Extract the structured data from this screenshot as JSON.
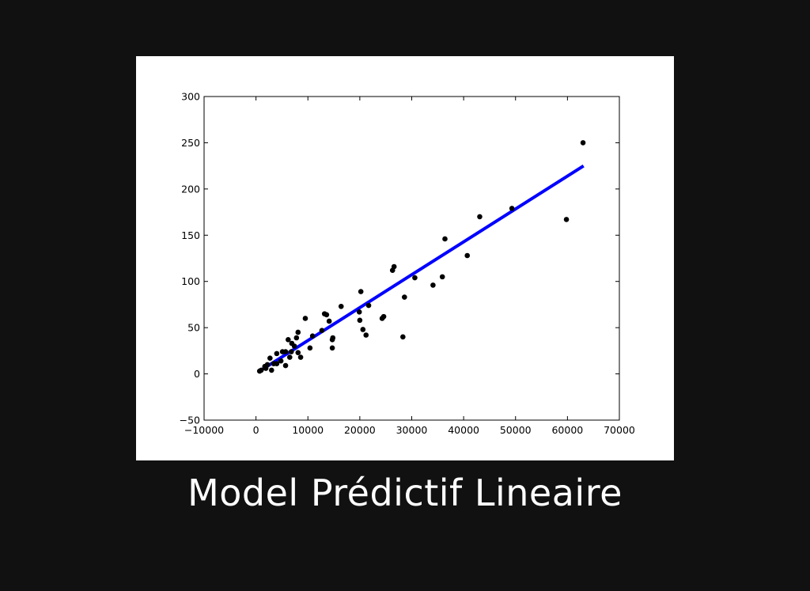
{
  "slide": {
    "title": "Model Prédictif Lineaire"
  },
  "colors": {
    "background": "#111111",
    "panel": "#ffffff",
    "points": "#000000",
    "fit_line": "#0000ff"
  },
  "chart_data": {
    "type": "scatter",
    "title": "",
    "xlabel": "",
    "ylabel": "",
    "xlim": [
      -10000,
      70000
    ],
    "ylim": [
      -50,
      300
    ],
    "xticks": [
      -10000,
      0,
      10000,
      20000,
      30000,
      40000,
      50000,
      60000,
      70000
    ],
    "yticks": [
      -50,
      0,
      50,
      100,
      150,
      200,
      250,
      300
    ],
    "grid": false,
    "points": [
      [
        63000,
        250
      ],
      [
        59800,
        167
      ],
      [
        49300,
        179
      ],
      [
        43100,
        170
      ],
      [
        36400,
        146
      ],
      [
        40700,
        128
      ],
      [
        35900,
        105
      ],
      [
        34100,
        96
      ],
      [
        30600,
        104
      ],
      [
        26600,
        116
      ],
      [
        26300,
        112
      ],
      [
        28600,
        83
      ],
      [
        28300,
        40
      ],
      [
        24600,
        62
      ],
      [
        24300,
        60
      ],
      [
        21700,
        74
      ],
      [
        20200,
        89
      ],
      [
        19900,
        67
      ],
      [
        20000,
        58
      ],
      [
        20600,
        48
      ],
      [
        21200,
        42
      ],
      [
        16400,
        73
      ],
      [
        9500,
        60
      ],
      [
        13200,
        65
      ],
      [
        13600,
        64
      ],
      [
        14100,
        57
      ],
      [
        12700,
        47
      ],
      [
        10900,
        41
      ],
      [
        14700,
        37
      ],
      [
        14800,
        39
      ],
      [
        10400,
        28
      ],
      [
        14700,
        28
      ],
      [
        8100,
        45
      ],
      [
        7800,
        39
      ],
      [
        7400,
        30
      ],
      [
        6900,
        33
      ],
      [
        6200,
        37
      ],
      [
        6800,
        24
      ],
      [
        8600,
        18
      ],
      [
        8100,
        23
      ],
      [
        6500,
        18
      ],
      [
        5700,
        24
      ],
      [
        5100,
        24
      ],
      [
        4000,
        22
      ],
      [
        4800,
        14
      ],
      [
        5700,
        9
      ],
      [
        2700,
        17
      ],
      [
        3400,
        11
      ],
      [
        2200,
        10
      ],
      [
        1900,
        6
      ],
      [
        1000,
        4
      ],
      [
        3000,
        4
      ],
      [
        700,
        3
      ],
      [
        1700,
        8
      ],
      [
        4000,
        11
      ]
    ],
    "fit_line": {
      "x": [
        700,
        63100
      ],
      "y": [
        3,
        225
      ]
    }
  }
}
